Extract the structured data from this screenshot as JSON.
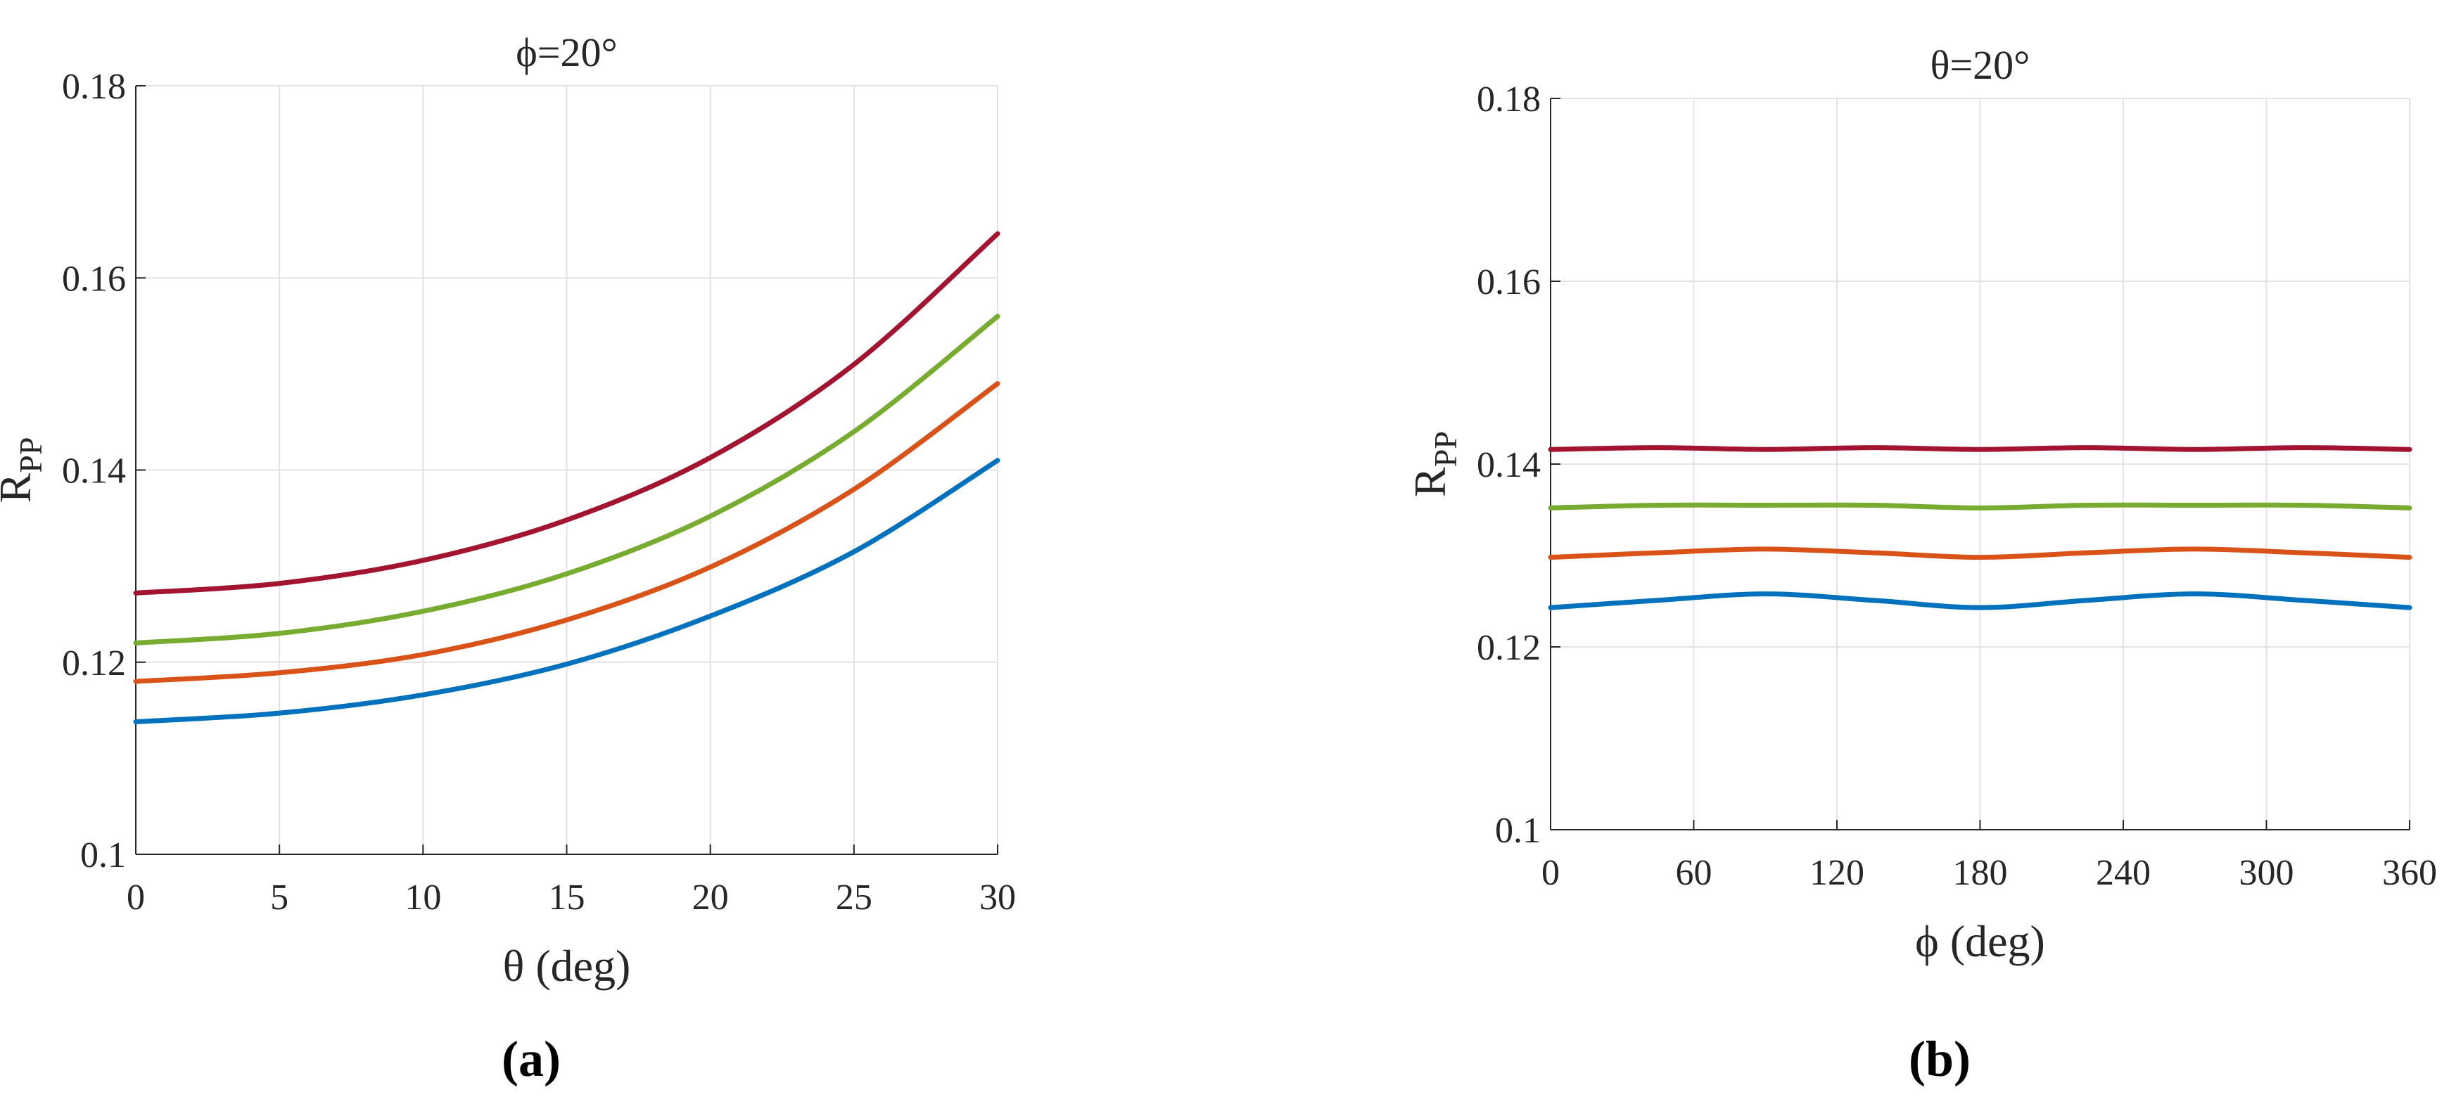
{
  "colors": {
    "series": [
      "#0072BD",
      "#D95319",
      "#77AC30",
      "#A2142F"
    ],
    "grid": "#e3e3e3",
    "axis": "#262626"
  },
  "chart_data": [
    {
      "type": "line",
      "panel_label": "(a)",
      "title": "ϕ=20°",
      "xlabel": "θ (deg)",
      "ylabel": "R_PP",
      "xlim": [
        0,
        30
      ],
      "ylim": [
        0.1,
        0.18
      ],
      "xticks": [
        0,
        5,
        10,
        15,
        20,
        25,
        30
      ],
      "yticks": [
        0.1,
        0.12,
        0.14,
        0.16,
        0.18
      ],
      "xtick_labels": [
        "0",
        "5",
        "10",
        "15",
        "20",
        "25",
        "30"
      ],
      "ytick_labels": [
        "0.1",
        "0.12",
        "0.14",
        "0.16",
        "0.18"
      ],
      "grid": true,
      "x": [
        0,
        5,
        10,
        15,
        20,
        25,
        30
      ],
      "series": [
        {
          "values": [
            0.1138,
            0.1147,
            0.1166,
            0.1198,
            0.1248,
            0.1315,
            0.141
          ]
        },
        {
          "values": [
            0.118,
            0.1189,
            0.1208,
            0.1244,
            0.1299,
            0.138,
            0.149
          ]
        },
        {
          "values": [
            0.122,
            0.123,
            0.1253,
            0.1292,
            0.1352,
            0.144,
            0.156
          ]
        },
        {
          "values": [
            0.1272,
            0.1282,
            0.1306,
            0.1348,
            0.1413,
            0.151,
            0.1646
          ]
        }
      ]
    },
    {
      "type": "line",
      "panel_label": "(b)",
      "title": "θ=20°",
      "xlabel": "ϕ (deg)",
      "ylabel": "R_PP",
      "xlim": [
        0,
        360
      ],
      "ylim": [
        0.1,
        0.18
      ],
      "xticks": [
        0,
        60,
        120,
        180,
        240,
        300,
        360
      ],
      "yticks": [
        0.1,
        0.12,
        0.14,
        0.16,
        0.18
      ],
      "xtick_labels": [
        "0",
        "60",
        "120",
        "180",
        "240",
        "300",
        "360"
      ],
      "ytick_labels": [
        "0.1",
        "0.12",
        "0.14",
        "0.16",
        "0.18"
      ],
      "grid": true,
      "x": [
        0,
        45,
        90,
        135,
        180,
        225,
        270,
        315,
        360
      ],
      "series": [
        {
          "values": [
            0.1243,
            0.1251,
            0.1258,
            0.1251,
            0.1243,
            0.1251,
            0.1258,
            0.1251,
            0.1243
          ]
        },
        {
          "values": [
            0.1298,
            0.1303,
            0.1307,
            0.1303,
            0.1298,
            0.1303,
            0.1307,
            0.1303,
            0.1298
          ]
        },
        {
          "values": [
            0.1352,
            0.1355,
            0.1355,
            0.1355,
            0.1352,
            0.1355,
            0.1355,
            0.1355,
            0.1352
          ]
        },
        {
          "values": [
            0.1416,
            0.1418,
            0.1416,
            0.1418,
            0.1416,
            0.1418,
            0.1416,
            0.1418,
            0.1416
          ]
        }
      ]
    }
  ]
}
